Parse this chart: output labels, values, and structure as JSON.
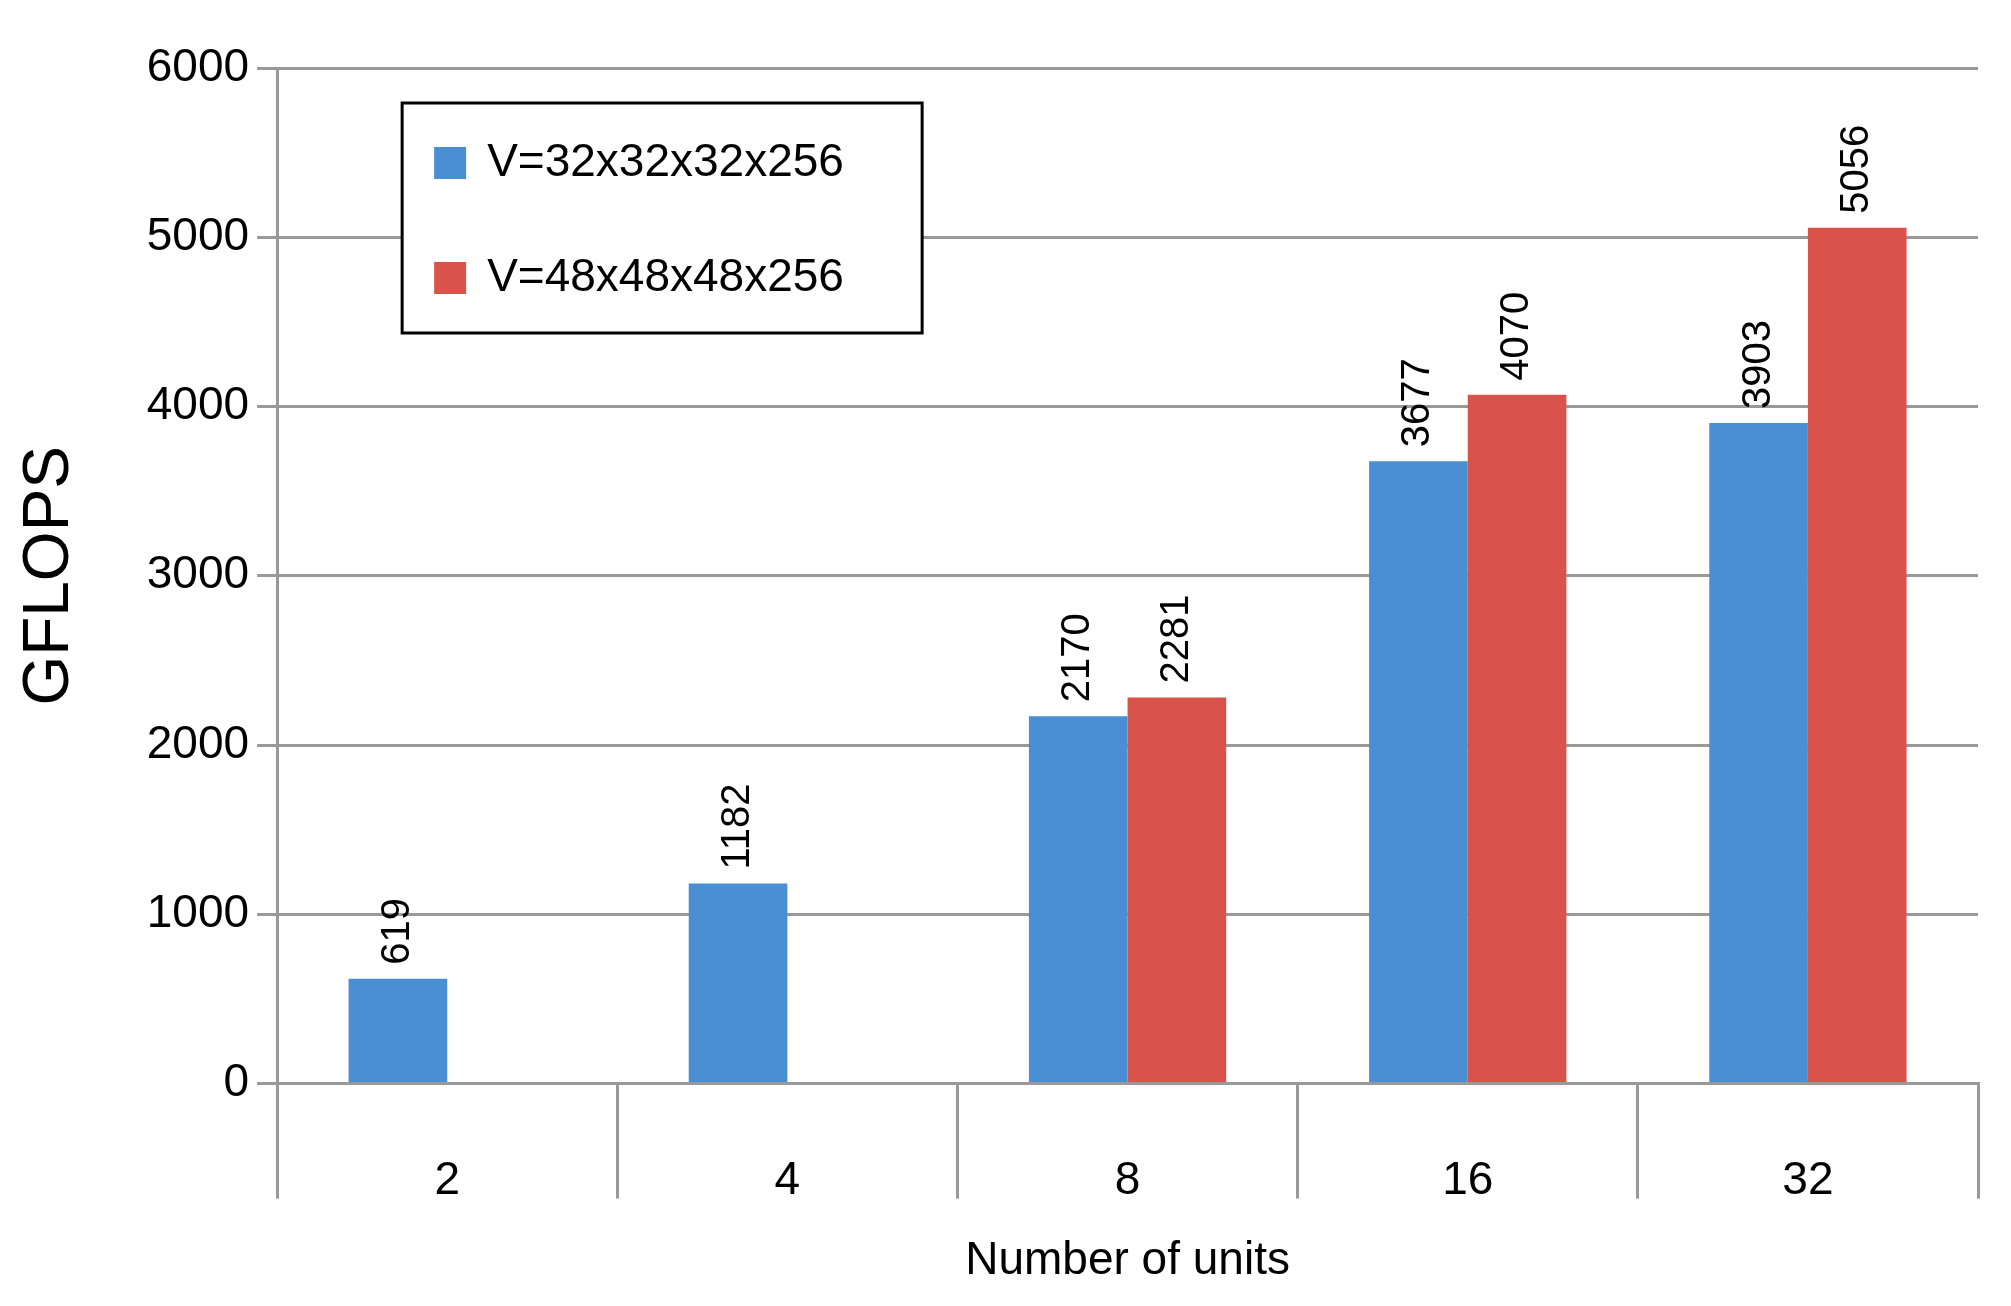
{
  "chart_data": {
    "type": "bar",
    "xlabel": "Number of units",
    "ylabel": "GFLOPS",
    "categories": [
      "2",
      "4",
      "8",
      "16",
      "32"
    ],
    "series": [
      {
        "name": "V=32x32x32x256",
        "color": "#4a8fd4",
        "values": [
          619,
          1182,
          2170,
          3677,
          3903
        ]
      },
      {
        "name": "V=48x48x48x256",
        "color": "#d9534a",
        "values": [
          null,
          null,
          2281,
          4070,
          5056
        ]
      }
    ],
    "ylim": [
      0,
      6000
    ],
    "yticks": [
      0,
      1000,
      2000,
      3000,
      4000,
      5000,
      6000
    ],
    "grid": "y",
    "legend": "top left",
    "data_labels": true
  }
}
